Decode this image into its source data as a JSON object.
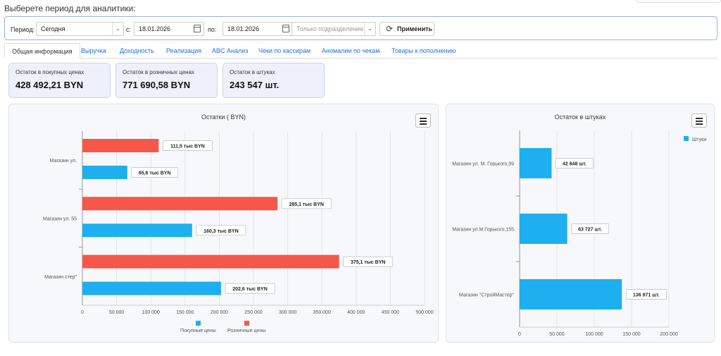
{
  "page_title": "Выберете период для аналитики:",
  "filters": {
    "period_label": "Период:",
    "period_value": "Сегодня",
    "from_label": "с:",
    "from_date": "18.01.2026",
    "to_label": "по:",
    "to_date": "18.01.2026",
    "subdivision_placeholder": "Только подразделение",
    "apply_label": "Применить"
  },
  "tabs": [
    {
      "label": "Общая информация",
      "active": true
    },
    {
      "label": "Выручка"
    },
    {
      "label": "Доходность"
    },
    {
      "label": "Реализация"
    },
    {
      "label": "ABC Анализ"
    },
    {
      "label": "Чеки по кассирам"
    },
    {
      "label": "Аномалии по чекам"
    },
    {
      "label": "Товары к пополнению"
    }
  ],
  "cards": [
    {
      "label": "Остаток в покупных ценах",
      "value": "428 492,21 BYN"
    },
    {
      "label": "Остаток в розничных ценах",
      "value": "771 690,58 BYN"
    },
    {
      "label": "Остаток в штуках",
      "value": "243 547 шт."
    }
  ],
  "colors": {
    "purchase": "#1eaff0",
    "retail": "#f5574a",
    "accent": "#1a73e8"
  },
  "chart_data": [
    {
      "type": "bar",
      "orientation": "horizontal",
      "title": "Остатки ( BYN)",
      "categories": [
        "Магазин ул. ",
        "Магазин ул. 55",
        "Магазин стер\""
      ],
      "series": [
        {
          "name": "Розничные цены",
          "values": [
            111500,
            285100,
            375100
          ],
          "labels": [
            "111,5 тыс  BYN",
            "285,1 тыс  BYN",
            "375,1 тыс  BYN"
          ]
        },
        {
          "name": "Покупные цены",
          "values": [
            65600,
            160300,
            202600
          ],
          "labels": [
            "65,6 тыс  BYN",
            "160,3 тыс  BYN",
            "202,6 тыс  BYN"
          ]
        }
      ],
      "legend": [
        "Покупные цены",
        "Розничные цены"
      ],
      "xlim": [
        0,
        500000
      ],
      "xticks": [
        "0",
        "50 000",
        "100 000",
        "150 000",
        "200 000",
        "250 000",
        "300 000",
        "350 000",
        "400 000",
        "450 000",
        "500 000"
      ],
      "legend_position": "bottom",
      "grid": true
    },
    {
      "type": "bar",
      "orientation": "horizontal",
      "title": "Остаток в штуках",
      "categories": [
        "Магазин ул. М. Горького,99",
        "Магазин ул.М.Горького,155",
        "Магазин  \"СтройМастер\""
      ],
      "series": [
        {
          "name": "Штуки",
          "values": [
            42848,
            63727,
            136971
          ],
          "labels": [
            "42 848 шт.",
            "63 727 шт.",
            "136 971 шт."
          ]
        }
      ],
      "xlim": [
        0,
        200000
      ],
      "xticks": [
        "0",
        "50 000",
        "100 000",
        "150 000",
        "200 000"
      ],
      "legend_position": "top-right",
      "grid": true
    }
  ]
}
